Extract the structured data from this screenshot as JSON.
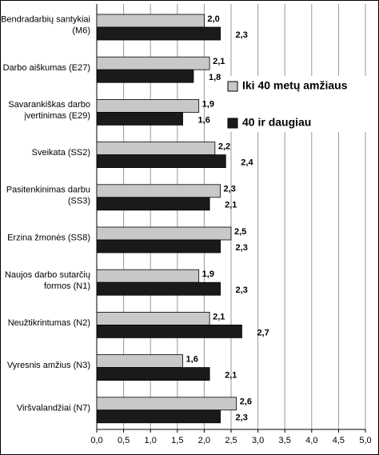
{
  "chart_data": {
    "type": "hbar",
    "categories": [
      [
        "Bendradarbių santykiai",
        "(M6)"
      ],
      [
        "Darbo aiškumas (E27)"
      ],
      [
        "Savarankiškas darbo",
        "įvertinimas (E29)"
      ],
      [
        "Sveikata (SS2)"
      ],
      [
        "Pasitenkinimas darbu",
        "(SS3)"
      ],
      [
        "Erzina žmonės (SS8)"
      ],
      [
        "Naujos darbo sutarčių",
        "formos (N1)"
      ],
      [
        "Neužtikrintumas (N2)"
      ],
      [
        "Vyresnis amžius (N3)"
      ],
      [
        "Viršvalandžiai (N7)"
      ]
    ],
    "series": [
      {
        "name": "Iki 40 metų amžiaus",
        "color": "#c8c8c8",
        "values": [
          2.0,
          2.1,
          1.9,
          2.2,
          2.3,
          2.5,
          1.9,
          2.1,
          1.6,
          2.6
        ],
        "value_labels": [
          "2,0",
          "2,1",
          "1,9",
          "2,2",
          "2,3",
          "2,5",
          "1,9",
          "2,1",
          "1,6",
          "2,6"
        ]
      },
      {
        "name": "40 ir daugiau",
        "color": "#1a1a1a",
        "values": [
          2.3,
          1.8,
          1.6,
          2.4,
          2.1,
          2.3,
          2.3,
          2.7,
          2.1,
          2.3
        ],
        "value_labels": [
          "2,3",
          "1,8",
          "1,6",
          "2,4",
          "2,1",
          "2,3",
          "2,3",
          "2,7",
          "2,1",
          "2,3"
        ]
      }
    ],
    "xlim": [
      0,
      5
    ],
    "xticks": [
      {
        "value": 0,
        "label": "0,0"
      },
      {
        "value": 0.5,
        "label": "0,5"
      },
      {
        "value": 1,
        "label": "1,0"
      },
      {
        "value": 1.5,
        "label": "1,5"
      },
      {
        "value": 2,
        "label": "2,0"
      },
      {
        "value": 2.5,
        "label": "2,5"
      },
      {
        "value": 3,
        "label": "3,0"
      },
      {
        "value": 3.5,
        "label": "3,5"
      },
      {
        "value": 4,
        "label": "4,0"
      },
      {
        "value": 4.5,
        "label": "4,5"
      },
      {
        "value": 5,
        "label": "5,0"
      }
    ],
    "grid": true
  }
}
